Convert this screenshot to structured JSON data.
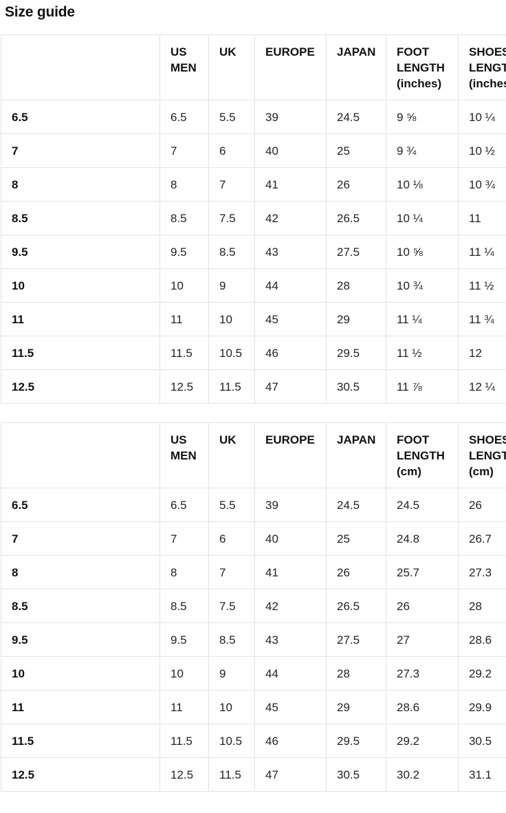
{
  "page": {
    "title": "Size guide"
  },
  "tables": [
    {
      "name": "mens-shoe-sizes-inches",
      "headers": [
        "",
        "US MEN",
        "UK",
        "EUROPE",
        "JAPAN",
        "FOOT LENGTH (inches)",
        "SHOES LENGTH (inches)"
      ],
      "rows": [
        [
          "6.5",
          "6.5",
          "5.5",
          "39",
          "24.5",
          "9 ⅝",
          "10 ¼"
        ],
        [
          "7",
          "7",
          "6",
          "40",
          "25",
          "9 ¾",
          "10 ½"
        ],
        [
          "8",
          "8",
          "7",
          "41",
          "26",
          "10 ⅛",
          "10 ¾"
        ],
        [
          "8.5",
          "8.5",
          "7.5",
          "42",
          "26.5",
          "10 ¼",
          "11"
        ],
        [
          "9.5",
          "9.5",
          "8.5",
          "43",
          "27.5",
          "10 ⅝",
          "11 ¼"
        ],
        [
          "10",
          "10",
          "9",
          "44",
          "28",
          "10 ¾",
          "11 ½"
        ],
        [
          "11",
          "11",
          "10",
          "45",
          "29",
          "11 ¼",
          "11 ¾"
        ],
        [
          "11.5",
          "11.5",
          "10.5",
          "46",
          "29.5",
          "11 ½",
          "12"
        ],
        [
          "12.5",
          "12.5",
          "11.5",
          "47",
          "30.5",
          "11 ⅞",
          "12 ¼"
        ]
      ]
    },
    {
      "name": "mens-shoe-sizes-cm",
      "headers": [
        "",
        "US MEN",
        "UK",
        "EUROPE",
        "JAPAN",
        "FOOT LENGTH (cm)",
        "SHOES LENGTH (cm)"
      ],
      "rows": [
        [
          "6.5",
          "6.5",
          "5.5",
          "39",
          "24.5",
          "24.5",
          "26"
        ],
        [
          "7",
          "7",
          "6",
          "40",
          "25",
          "24.8",
          "26.7"
        ],
        [
          "8",
          "8",
          "7",
          "41",
          "26",
          "25.7",
          "27.3"
        ],
        [
          "8.5",
          "8.5",
          "7.5",
          "42",
          "26.5",
          "26",
          "28"
        ],
        [
          "9.5",
          "9.5",
          "8.5",
          "43",
          "27.5",
          "27",
          "28.6"
        ],
        [
          "10",
          "10",
          "9",
          "44",
          "28",
          "27.3",
          "29.2"
        ],
        [
          "11",
          "11",
          "10",
          "45",
          "29",
          "28.6",
          "29.9"
        ],
        [
          "11.5",
          "11.5",
          "10.5",
          "46",
          "29.5",
          "29.2",
          "30.5"
        ],
        [
          "12.5",
          "12.5",
          "11.5",
          "47",
          "30.5",
          "30.2",
          "31.1"
        ]
      ]
    }
  ]
}
